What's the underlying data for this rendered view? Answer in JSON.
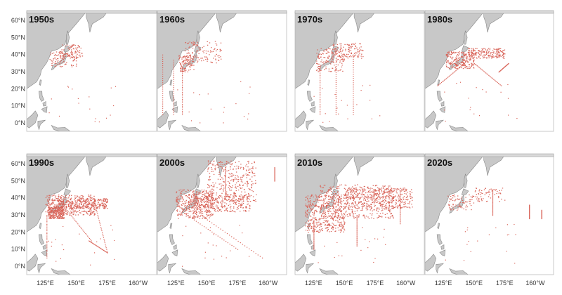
{
  "map": {
    "lon_labels": [
      "125°E",
      "150°E",
      "175°E",
      "160°W"
    ],
    "lat_labels": [
      "60°N",
      "50°N",
      "40°N",
      "30°N",
      "20°N",
      "10°N",
      "0°N"
    ],
    "extent": {
      "lon_min": 110,
      "lon_max": 215,
      "lat_min": -5,
      "lat_max": 65
    },
    "colors": {
      "land": "#c8c8c8",
      "coast": "#8a8a8a",
      "tracks": "#d9655a",
      "background": "#ffffff"
    }
  },
  "panels": [
    {
      "label": "1950s",
      "density": "low"
    },
    {
      "label": "1960s",
      "density": "low"
    },
    {
      "label": "1970s",
      "density": "low"
    },
    {
      "label": "1980s",
      "density": "medium"
    },
    {
      "label": "1990s",
      "density": "high"
    },
    {
      "label": "2000s",
      "density": "high"
    },
    {
      "label": "2010s",
      "density": "very-high"
    },
    {
      "label": "2020s",
      "density": "low"
    }
  ]
}
